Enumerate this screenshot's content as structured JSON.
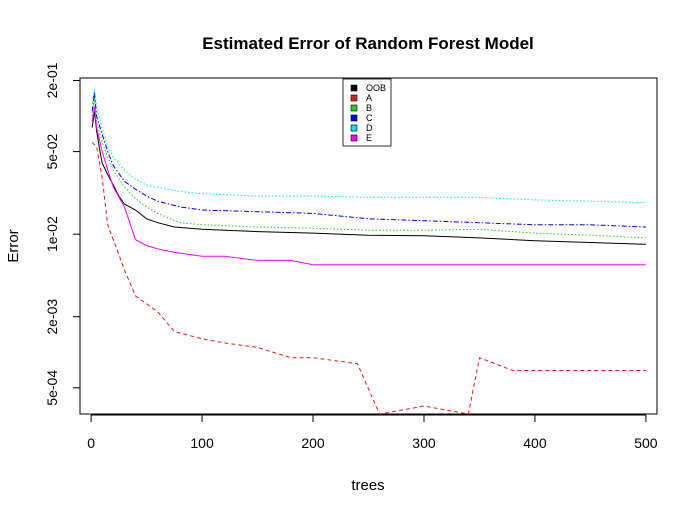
{
  "chart_data": {
    "type": "line",
    "title": "Estimated Error of Random Forest Model",
    "xlabel": "trees",
    "ylabel": "Error",
    "x_scale": "linear",
    "y_scale": "log",
    "xlim": [
      -10,
      510
    ],
    "ylim": [
      0.0003,
      0.21
    ],
    "x_ticks": [
      0,
      100,
      200,
      300,
      400,
      500
    ],
    "x_tick_labels": [
      "0",
      "100",
      "200",
      "300",
      "400",
      "500"
    ],
    "y_ticks": [
      0.0005,
      0.002,
      0.01,
      0.05,
      0.2
    ],
    "y_tick_labels": [
      "5e-04",
      "2e-03",
      "1e-02",
      "5e-02",
      "2e-01"
    ],
    "grid": false,
    "legend_position": "top-center",
    "series": [
      {
        "name": "OOB",
        "color": "#000000",
        "dash": "solid",
        "x": [
          1,
          3,
          5,
          8,
          10,
          15,
          20,
          25,
          30,
          40,
          50,
          60,
          75,
          100,
          150,
          200,
          250,
          300,
          350,
          400,
          450,
          500
        ],
        "values": [
          0.08,
          0.11,
          0.075,
          0.05,
          0.04,
          0.032,
          0.026,
          0.021,
          0.018,
          0.016,
          0.0135,
          0.0125,
          0.0115,
          0.011,
          0.0105,
          0.0102,
          0.0098,
          0.0097,
          0.0093,
          0.0088,
          0.0085,
          0.0082
        ]
      },
      {
        "name": "A",
        "color": "#e41a1c",
        "dash": "dashed",
        "x": [
          1,
          5,
          10,
          15,
          20,
          30,
          40,
          60,
          75,
          100,
          120,
          150,
          180,
          200,
          240,
          260,
          300,
          340,
          350,
          380,
          400,
          450,
          500
        ],
        "values": [
          0.06,
          0.055,
          0.03,
          0.012,
          0.009,
          0.005,
          0.003,
          0.0022,
          0.0015,
          0.0013,
          0.0012,
          0.0011,
          0.0009,
          0.0009,
          0.0008,
          0.0003,
          0.00035,
          0.0003,
          0.0009,
          0.0007,
          0.0007,
          0.0007,
          0.0007
        ]
      },
      {
        "name": "B",
        "color": "#22cc22",
        "dash": "dotted",
        "x": [
          1,
          3,
          5,
          10,
          15,
          20,
          30,
          40,
          50,
          60,
          80,
          100,
          150,
          200,
          250,
          300,
          350,
          400,
          450,
          500
        ],
        "values": [
          0.1,
          0.14,
          0.09,
          0.06,
          0.045,
          0.035,
          0.025,
          0.02,
          0.017,
          0.015,
          0.0125,
          0.012,
          0.0115,
          0.0112,
          0.0108,
          0.0108,
          0.011,
          0.0102,
          0.0098,
          0.0093
        ]
      },
      {
        "name": "C",
        "color": "#0000ff",
        "dash": "dashdot",
        "x": [
          1,
          3,
          5,
          10,
          15,
          20,
          30,
          40,
          50,
          60,
          80,
          100,
          150,
          200,
          250,
          300,
          350,
          400,
          450,
          500
        ],
        "values": [
          0.11,
          0.16,
          0.1,
          0.07,
          0.05,
          0.038,
          0.028,
          0.024,
          0.021,
          0.019,
          0.017,
          0.016,
          0.0155,
          0.015,
          0.0135,
          0.013,
          0.0125,
          0.012,
          0.012,
          0.0115
        ]
      },
      {
        "name": "D",
        "color": "#00e5ee",
        "dash": "dotted",
        "x": [
          1,
          3,
          5,
          10,
          15,
          20,
          30,
          40,
          50,
          60,
          80,
          100,
          150,
          200,
          250,
          300,
          350,
          400,
          450,
          500
        ],
        "values": [
          0.13,
          0.17,
          0.12,
          0.08,
          0.055,
          0.045,
          0.035,
          0.029,
          0.026,
          0.025,
          0.023,
          0.022,
          0.021,
          0.021,
          0.0205,
          0.0205,
          0.0205,
          0.0195,
          0.019,
          0.0185
        ]
      },
      {
        "name": "E",
        "color": "#ff00ff",
        "dash": "solid",
        "x": [
          1,
          3,
          5,
          10,
          15,
          20,
          30,
          40,
          50,
          60,
          75,
          100,
          120,
          150,
          180,
          200,
          250,
          300,
          350,
          400,
          450,
          500
        ],
        "values": [
          0.09,
          0.12,
          0.08,
          0.05,
          0.035,
          0.025,
          0.017,
          0.009,
          0.008,
          0.0075,
          0.007,
          0.0065,
          0.0065,
          0.006,
          0.006,
          0.0055,
          0.0055,
          0.0055,
          0.0055,
          0.0055,
          0.0055,
          0.0055
        ]
      }
    ]
  }
}
